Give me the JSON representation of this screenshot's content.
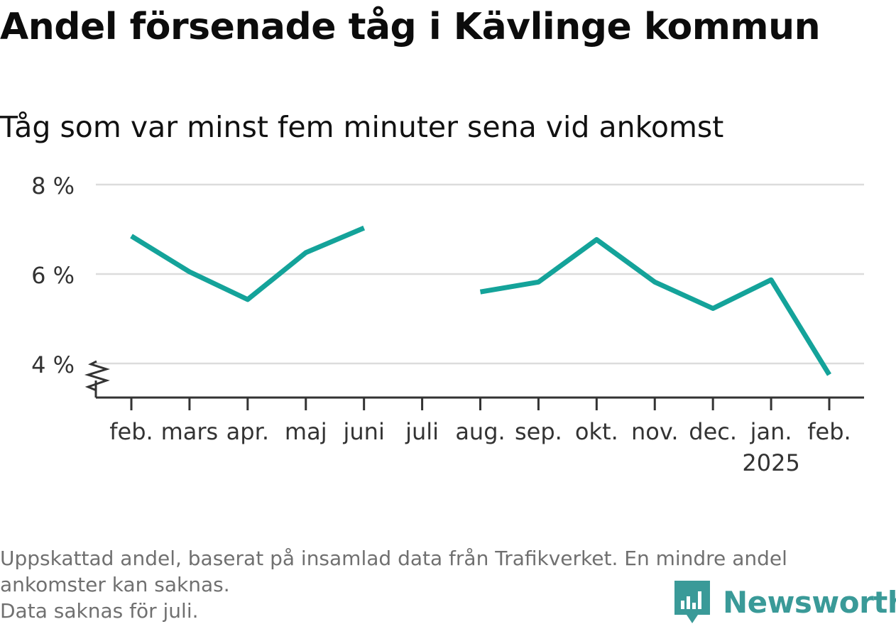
{
  "chart_data": {
    "type": "line",
    "title": "Andel försenade tåg i Kävlinge kommun",
    "subtitle": "Tåg som var minst fem minuter sena vid ankomst",
    "categories": [
      "feb.",
      "mars",
      "apr.",
      "maj",
      "juni",
      "juli",
      "aug.",
      "sep.",
      "okt.",
      "nov.",
      "dec.",
      "jan.",
      "feb."
    ],
    "year_labels": [
      "",
      "",
      "",
      "",
      "",
      "",
      "",
      "",
      "",
      "",
      "",
      "2025",
      ""
    ],
    "series": [
      {
        "values": [
          6.85,
          6.05,
          5.43,
          6.48,
          7.03,
          null,
          5.6,
          5.82,
          6.77,
          5.82,
          5.23,
          5.87,
          3.75
        ]
      }
    ],
    "ylim": [
      3.3,
      8.0
    ],
    "yticks": [
      4,
      6,
      8
    ],
    "ytick_labels": [
      "4 %",
      "6 %",
      "8 %"
    ],
    "axis_break": true,
    "grid": true,
    "line_color": "#14a39a",
    "xlabel": "",
    "ylabel": ""
  },
  "footer": {
    "note_line1": "Uppskattad andel, baserat på insamlad data från Trafikverket. En mindre andel",
    "note_line2": "ankomster kan saknas.",
    "note_line3": "Data saknas för juli."
  },
  "logo": {
    "text": "Newsworthy",
    "color": "#3a9a98"
  }
}
